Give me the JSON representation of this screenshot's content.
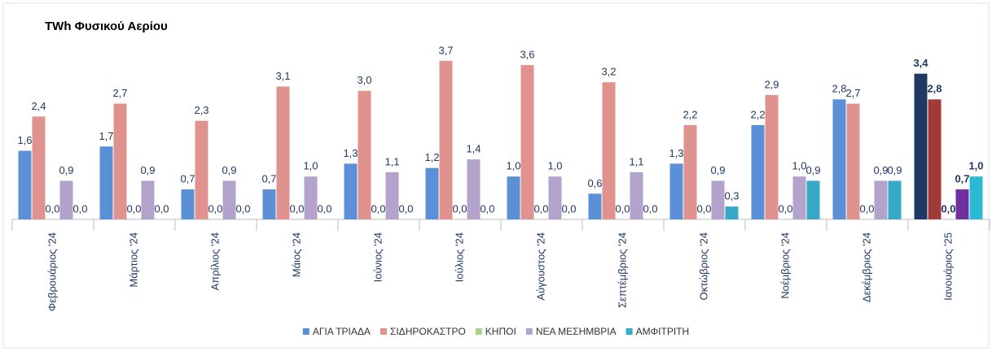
{
  "chart_data": {
    "type": "bar",
    "title": "TWh Φυσικού Αερίου",
    "categories": [
      "Φεβρουάριος '24",
      "Μάρτιος '24",
      "Απρίλιος '24",
      "Μάιος '24",
      "Ιούνιος '24",
      "Ιούλιος '24",
      "Αύγουστος '24",
      "Σεπτέμβριος '24",
      "Οκτώβριος '24",
      "Νοέμβριος '24",
      "Δεκέμβριος '24",
      "Ιανουάριος '25"
    ],
    "ylim": [
      0,
      4
    ],
    "legend": "bottom",
    "series": [
      {
        "name": "ΑΓΙΑ ΤΡΙΑΔΑ",
        "color": "#5b8fd6",
        "colors": [
          "#5b8fd6",
          "#5b8fd6",
          "#5b8fd6",
          "#5b8fd6",
          "#5b8fd6",
          "#5b8fd6",
          "#5b8fd6",
          "#5b8fd6",
          "#5b8fd6",
          "#5b8fd6",
          "#5b8fd6",
          "#1f3864"
        ],
        "values": [
          1.6,
          1.7,
          0.7,
          0.7,
          1.3,
          1.2,
          1.0,
          0.6,
          1.3,
          2.2,
          2.8,
          3.4
        ],
        "value_labels": [
          "1,6",
          "1,7",
          "0,7",
          "0,7",
          "1,3",
          "1,2",
          "1,0",
          "0,6",
          "1,3",
          "2,2",
          "2,8",
          "3,4"
        ]
      },
      {
        "name": "ΣΙΔΗΡΟΚΑΣΤΡΟ",
        "color": "#e0928f",
        "colors": [
          "#e0928f",
          "#e0928f",
          "#e0928f",
          "#e0928f",
          "#e0928f",
          "#e0928f",
          "#e0928f",
          "#e0928f",
          "#e0928f",
          "#e0928f",
          "#e0928f",
          "#a33a3a"
        ],
        "values": [
          2.4,
          2.7,
          2.3,
          3.1,
          3.0,
          3.7,
          3.6,
          3.2,
          2.2,
          2.9,
          2.7,
          2.8
        ],
        "value_labels": [
          "2,4",
          "2,7",
          "2,3",
          "3,1",
          "3,0",
          "3,7",
          "3,6",
          "3,2",
          "2,2",
          "2,9",
          "2,7",
          "2,8"
        ]
      },
      {
        "name": "ΚΗΠΟΙ",
        "color": "#a9d18e",
        "colors": [
          "#a9d18e",
          "#a9d18e",
          "#a9d18e",
          "#a9d18e",
          "#a9d18e",
          "#a9d18e",
          "#a9d18e",
          "#a9d18e",
          "#a9d18e",
          "#a9d18e",
          "#a9d18e",
          "#548235"
        ],
        "values": [
          0,
          0,
          0,
          0,
          0,
          0,
          0,
          0,
          0,
          0,
          0,
          0
        ],
        "value_labels": [
          "0,0",
          "0,0",
          "0,0",
          "0,0",
          "0,0",
          "0,0",
          "0,0",
          "0,0",
          "0,0",
          "0,0",
          "0,0",
          "0,0"
        ]
      },
      {
        "name": "ΝΕΑ ΜΕΣΗΜΒΡΙΑ",
        "color": "#b3a2cc",
        "colors": [
          "#b3a2cc",
          "#b3a2cc",
          "#b3a2cc",
          "#b3a2cc",
          "#b3a2cc",
          "#b3a2cc",
          "#b3a2cc",
          "#b3a2cc",
          "#b3a2cc",
          "#b3a2cc",
          "#b3a2cc",
          "#7030a0"
        ],
        "values": [
          0.9,
          0.9,
          0.9,
          1.0,
          1.1,
          1.4,
          1.0,
          1.1,
          0.9,
          1.0,
          0.9,
          0.7
        ],
        "value_labels": [
          "0,9",
          "0,9",
          "0,9",
          "1,0",
          "1,1",
          "1,4",
          "1,0",
          "1,1",
          "0,9",
          "1,0",
          "0,9",
          "0,7"
        ]
      },
      {
        "name": "ΑΜΦΙΤΡΙΤΗ",
        "color": "#35a9c6",
        "colors": [
          "#35a9c6",
          "#35a9c6",
          "#35a9c6",
          "#35a9c6",
          "#35a9c6",
          "#35a9c6",
          "#35a9c6",
          "#35a9c6",
          "#35a9c6",
          "#35a9c6",
          "#35a9c6",
          "#2bbad6"
        ],
        "values": [
          0,
          0,
          0,
          0,
          0,
          0,
          0,
          0,
          0.3,
          0.9,
          0.9,
          1.0
        ],
        "value_labels": [
          "0,0",
          "0,0",
          "0,0",
          "0,0",
          "0,0",
          "0,0",
          "0,0",
          "0,0",
          "0,3",
          "0,9",
          "0,9",
          "1,0"
        ]
      }
    ]
  }
}
